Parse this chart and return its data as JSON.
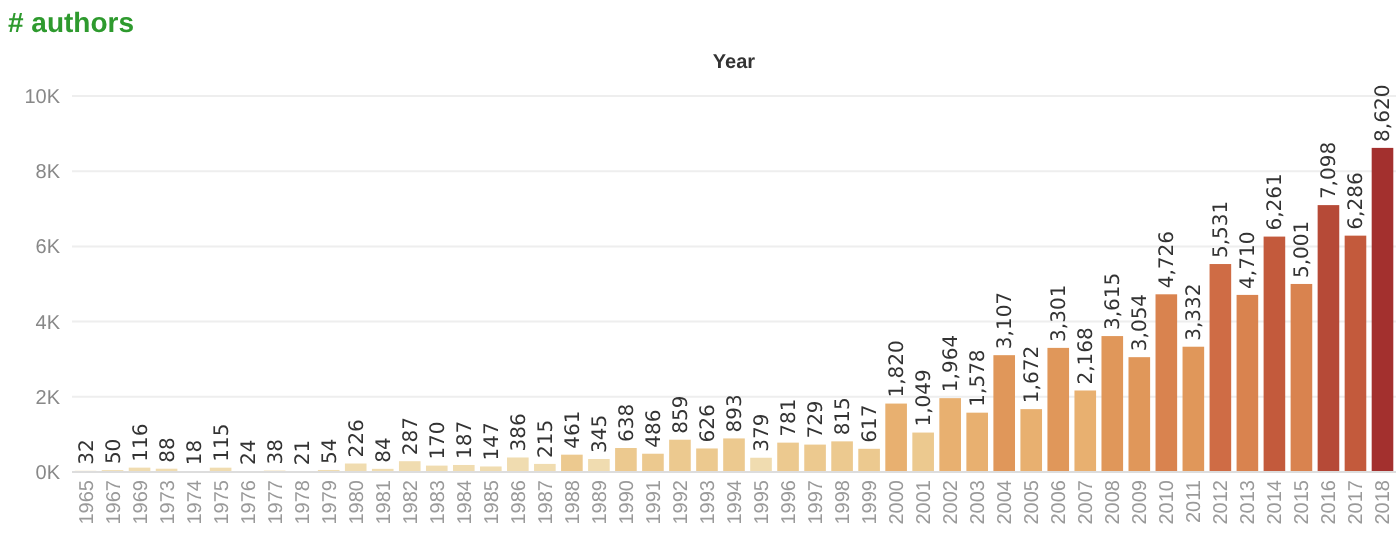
{
  "chart_data": {
    "type": "bar",
    "title": "# authors",
    "xlabel": "Year",
    "categories": [
      "1965",
      "1967",
      "1969",
      "1973",
      "1974",
      "1975",
      "1976",
      "1977",
      "1978",
      "1979",
      "1980",
      "1981",
      "1982",
      "1983",
      "1984",
      "1985",
      "1986",
      "1987",
      "1988",
      "1989",
      "1990",
      "1991",
      "1992",
      "1993",
      "1994",
      "1995",
      "1996",
      "1997",
      "1998",
      "1999",
      "2000",
      "2001",
      "2002",
      "2003",
      "2004",
      "2005",
      "2006",
      "2007",
      "2008",
      "2009",
      "2010",
      "2011",
      "2012",
      "2013",
      "2014",
      "2015",
      "2016",
      "2017",
      "2018"
    ],
    "values": [
      32,
      50,
      116,
      88,
      18,
      115,
      24,
      38,
      21,
      54,
      226,
      84,
      287,
      170,
      187,
      147,
      386,
      215,
      461,
      345,
      638,
      486,
      859,
      626,
      893,
      379,
      781,
      729,
      815,
      617,
      1820,
      1049,
      1964,
      1578,
      3107,
      1672,
      3301,
      2168,
      3615,
      3054,
      4726,
      3332,
      5531,
      4710,
      6261,
      5001,
      7098,
      6286,
      8620
    ],
    "colors": [
      "#f0dcb0",
      "#f0dcb0",
      "#f0dcb0",
      "#f0dcb0",
      "#f0dcb0",
      "#f0dcb0",
      "#f0dcb0",
      "#f0dcb0",
      "#f0dcb0",
      "#f0dcb0",
      "#f0dcb0",
      "#f0dcb0",
      "#f0dcb0",
      "#f0dcb0",
      "#f0dcb0",
      "#f0dcb0",
      "#f0dcb0",
      "#f0dcb0",
      "#ecc98f",
      "#f0dcb0",
      "#ecc98f",
      "#ecc98f",
      "#ecc98f",
      "#ecc98f",
      "#ecc98f",
      "#f0dcb0",
      "#ecc98f",
      "#ecc98f",
      "#ecc98f",
      "#ecc98f",
      "#e8b070",
      "#ecc98f",
      "#e8b070",
      "#e8b070",
      "#e0975a",
      "#e8b070",
      "#e0975a",
      "#e8b070",
      "#e0975a",
      "#e0975a",
      "#d9834f",
      "#e0975a",
      "#cf6c45",
      "#d9834f",
      "#c35a3c",
      "#d9834f",
      "#b64a37",
      "#c35a3c",
      "#a3302e"
    ],
    "ylim": [
      0,
      10000
    ],
    "yticks": [
      {
        "value": 0,
        "label": "0K"
      },
      {
        "value": 2000,
        "label": "2K"
      },
      {
        "value": 4000,
        "label": "4K"
      },
      {
        "value": 6000,
        "label": "6K"
      },
      {
        "value": 8000,
        "label": "8K"
      },
      {
        "value": 10000,
        "label": "10K"
      }
    ],
    "value_labels": [
      "32",
      "50",
      "116",
      "88",
      "18",
      "115",
      "24",
      "38",
      "21",
      "54",
      "226",
      "84",
      "287",
      "170",
      "187",
      "147",
      "386",
      "215",
      "461",
      "345",
      "638",
      "486",
      "859",
      "626",
      "893",
      "379",
      "781",
      "729",
      "815",
      "617",
      "1,820",
      "1,049",
      "1,964",
      "1,578",
      "3,107",
      "1,672",
      "3,301",
      "2,168",
      "3,615",
      "3,054",
      "4,726",
      "3,332",
      "5,531",
      "4,710",
      "6,261",
      "5,001",
      "7,098",
      "6,286",
      "8,620"
    ],
    "grid": "y"
  }
}
